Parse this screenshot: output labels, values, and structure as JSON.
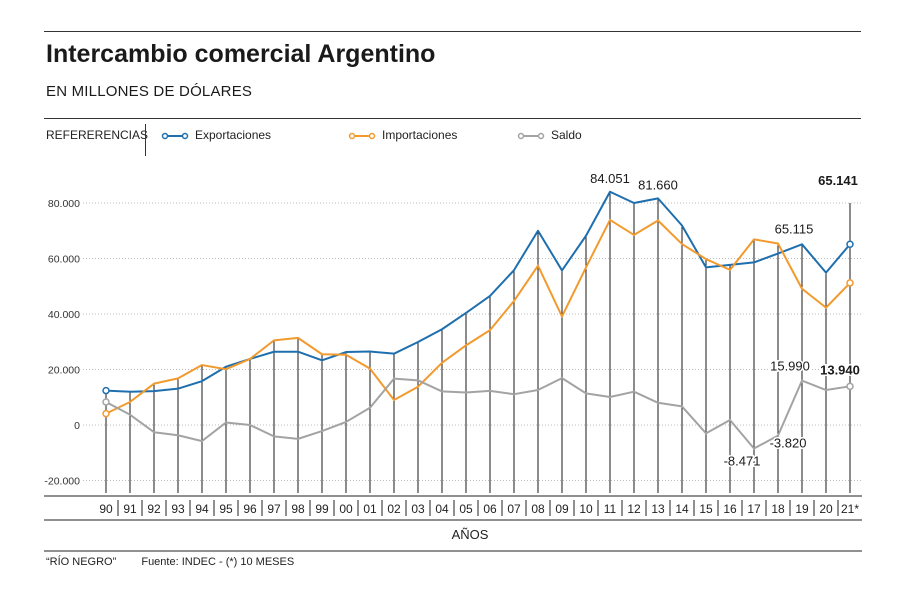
{
  "header": {
    "title": "Intercambio comercial Argentino",
    "subtitle": "EN MILLONES DE DÓLARES"
  },
  "legend": {
    "title": "REFERERENCIAS",
    "items": [
      {
        "label": "Exportaciones",
        "color": "#1f6fae"
      },
      {
        "label": "Importaciones",
        "color": "#f29a2e"
      },
      {
        "label": "Saldo",
        "color": "#a3a3a3"
      }
    ]
  },
  "footer": {
    "source_credit": "“RÍO NEGRO”",
    "source": "Fuente: INDEC - (*) 10 MESES"
  },
  "chart_data": {
    "type": "line",
    "title": "Intercambio comercial Argentino",
    "subtitle": "EN MILLONES DE DÓLARES",
    "xlabel": "AÑOS",
    "ylabel": "",
    "ylim": [
      -25000,
      80000
    ],
    "yticks": [
      -20000,
      0,
      20000,
      40000,
      60000,
      80000
    ],
    "ytick_labels": [
      "-20.000",
      "0",
      "20.000",
      "40.000",
      "60.000",
      "80.000"
    ],
    "grid": "horizontal dotted",
    "legend_position": "top-left",
    "categories": [
      "90",
      "91",
      "92",
      "93",
      "94",
      "95",
      "96",
      "97",
      "98",
      "99",
      "00",
      "01",
      "02",
      "03",
      "04",
      "05",
      "06",
      "07",
      "08",
      "09",
      "10",
      "11",
      "12",
      "13",
      "14",
      "15",
      "16",
      "17",
      "18",
      "19",
      "20",
      "21*"
    ],
    "series": [
      {
        "name": "Exportaciones",
        "color": "#1f6fae",
        "values": [
          12400,
          12000,
          12200,
          13100,
          15800,
          21000,
          23800,
          26400,
          26400,
          23300,
          26300,
          26500,
          25700,
          29900,
          34500,
          40400,
          46500,
          55800,
          70000,
          55700,
          68200,
          84051,
          80000,
          81660,
          71900,
          56800,
          57700,
          58600,
          61800,
          65115,
          54900,
          65141
        ]
      },
      {
        "name": "Importaciones",
        "color": "#f29a2e",
        "values": [
          4100,
          8300,
          14900,
          16800,
          21600,
          20100,
          23800,
          30500,
          31400,
          25500,
          25300,
          20300,
          9000,
          13800,
          22400,
          28700,
          34200,
          44700,
          57400,
          39100,
          56800,
          73900,
          68500,
          73700,
          65200,
          59800,
          55900,
          66900,
          65400,
          49100,
          42300,
          51200
        ]
      },
      {
        "name": "Saldo",
        "color": "#a3a3a3",
        "values": [
          8300,
          3700,
          -2600,
          -3700,
          -5800,
          900,
          0,
          -4100,
          -5000,
          -2200,
          1100,
          6200,
          16700,
          16100,
          12100,
          11700,
          12300,
          11100,
          12600,
          16900,
          11400,
          10100,
          12000,
          8000,
          6700,
          -3000,
          1800,
          -8471,
          -3820,
          15990,
          12600,
          13940
        ]
      }
    ],
    "annotations": [
      {
        "series": "Exportaciones",
        "x": "11",
        "text": "84.051"
      },
      {
        "series": "Exportaciones",
        "x": "13",
        "text": "81.660"
      },
      {
        "series": "Exportaciones",
        "x": "19",
        "text": "65.115"
      },
      {
        "series": "Exportaciones",
        "x": "21*",
        "text": "65.141",
        "bold": true
      },
      {
        "series": "Saldo",
        "x": "17",
        "text": "-8.471"
      },
      {
        "series": "Saldo",
        "x": "18",
        "text": "-3.820"
      },
      {
        "series": "Saldo",
        "x": "19",
        "text": "15.990"
      },
      {
        "series": "Saldo",
        "x": "21*",
        "text": "13.940",
        "bold": true
      }
    ]
  }
}
